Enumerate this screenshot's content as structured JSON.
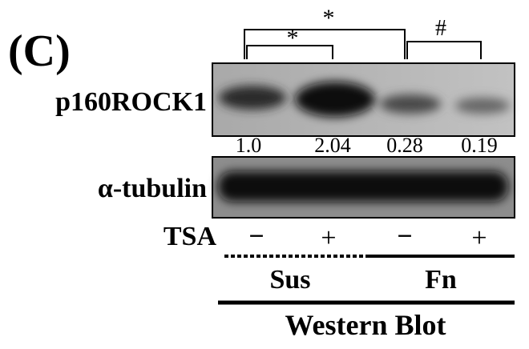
{
  "panel_label": "(C)",
  "significance": {
    "outer": "*",
    "inner": "*",
    "fn_pair": "#"
  },
  "blots": [
    {
      "label": "p160ROCK1",
      "quantification": [
        "1.0",
        "2.04",
        "0.28",
        "0.19"
      ]
    },
    {
      "label": "α-tubulin"
    }
  ],
  "treatment": {
    "label": "TSA",
    "lanes": [
      "−",
      "+",
      "−",
      "+"
    ]
  },
  "groups": [
    "Sus",
    "Fn"
  ],
  "method": "Western Blot"
}
